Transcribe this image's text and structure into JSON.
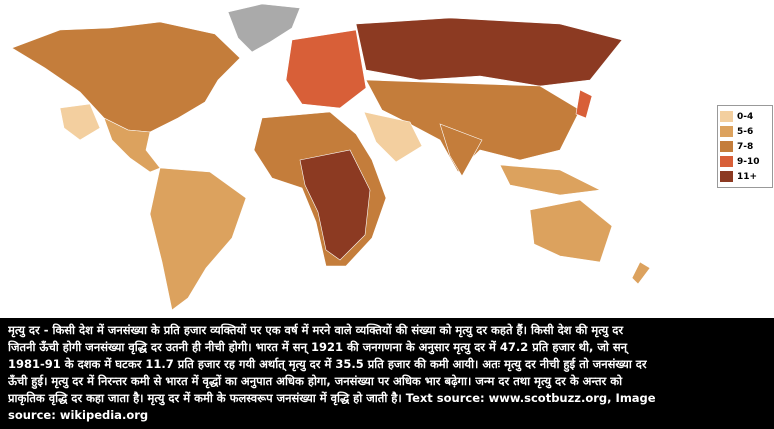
{
  "legend": [
    {
      "label": "0-4",
      "color": "#f3cf9f"
    },
    {
      "label": "5-6",
      "color": "#dca25e"
    },
    {
      "label": "7-8",
      "color": "#c47d3b"
    },
    {
      "label": "9-10",
      "color": "#d85f38"
    },
    {
      "label": "11+",
      "color": "#8c3a22"
    }
  ],
  "caption": {
    "lines": [
      "मृत्यु दर - किसी देश में जनसंख्या के प्रति हजार व्यक्तियों पर एक वर्ष में मरने वाले व्यक्तियों की संख्या को मृत्यु दर कहते हैं। किसी देश की मृत्यु दर",
      "जितनी ऊँची होगी जनसंख्या वृद्धि दर उतनी ही नीची होगी। भारत में सन् 1921 की जनगणना के अनुसार मृत्यु दर में 47.2 प्रति हजार थी, जो सन्",
      "1981-91 के दशक में घटकर 11.7 प्रति हजार रह गयी अर्थात् मृत्यु दर में 35.5 प्रति हजार की कमी आयी। अतः मृत्यु दर नीची हुई तो जनसंख्या दर",
      "ऊँची हुई। मृत्यु दर में निरन्तर कमी से भारत में वृद्धों का अनुपात अधिक होगा, जनसंख्या पर अधिक भार बढ़ेगा। जन्म दर तथा मृत्यु दर के अन्तर को",
      "प्राकृतिक वृद्धि दर कहा जाता है। मृत्यु दर में कमी के फलस्वरूप जनसंख्या में वृद्धि हो जाती है। Text source:  www.scotbuzz.org, Image",
      "source:  wikipedia.org"
    ]
  }
}
